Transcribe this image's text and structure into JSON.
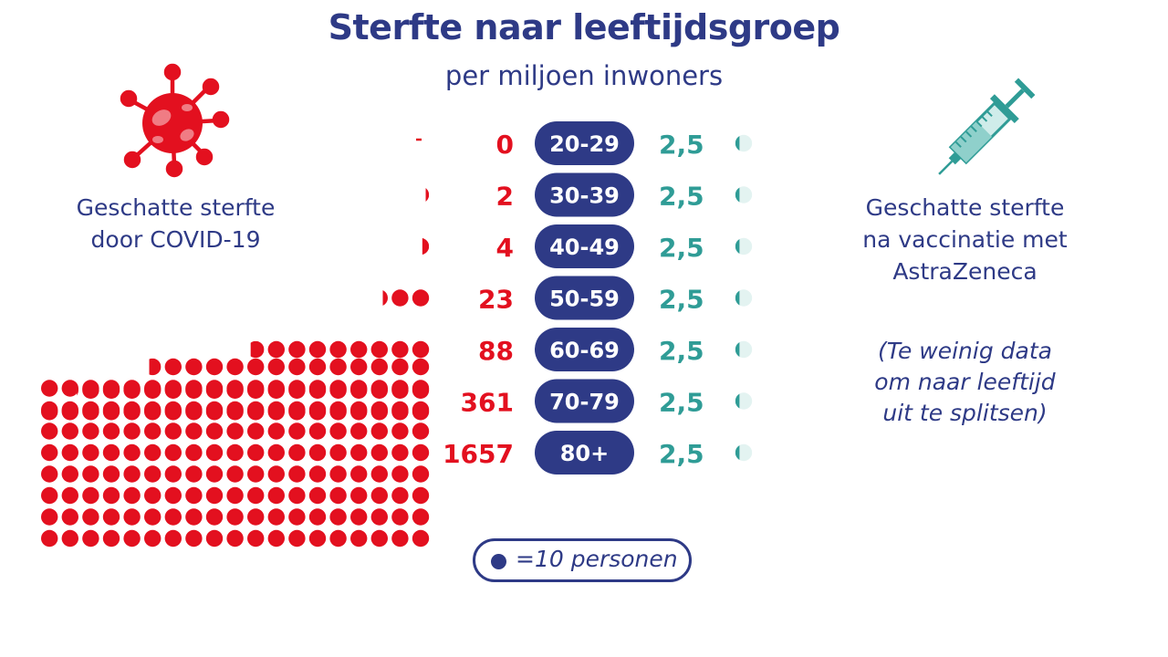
{
  "header": {
    "title": "Sterfte naar leeftijdsgroep",
    "subtitle": "per miljoen inwoners"
  },
  "covid_label": "Geschatte sterfte\ndoor COVID-19",
  "vaccine_label": "Geschatte sterfte\nna vaccinatie met\nAstraZeneca",
  "vaccine_note": "(Te weinig data\nom naar leeftijd\n uit te splitsen)",
  "legend": {
    "text": "=10 personen"
  },
  "icons": {
    "left": "virus-icon",
    "right": "syringe-icon"
  },
  "colors": {
    "title": "#2e3a86",
    "covid": "#e3101f",
    "vaccine": "#2f9c96",
    "badge": "#2e3a86",
    "vaccine_dot": "#e3f3f1"
  },
  "chart_data": {
    "type": "bar",
    "unit": "per miljoen inwoners",
    "dot_value": 10,
    "categories": [
      "20-29",
      "30-39",
      "40-49",
      "50-59",
      "60-69",
      "70-79",
      "80+"
    ],
    "series": [
      {
        "name": "Geschatte sterfte door COVID-19",
        "values": [
          0,
          2,
          4,
          23,
          88,
          361,
          1657
        ],
        "labels": [
          "0",
          "2",
          "4",
          "23",
          "88",
          "361",
          "1657"
        ]
      },
      {
        "name": "Geschatte sterfte na vaccinatie met AstraZeneca",
        "values": [
          2.5,
          2.5,
          2.5,
          2.5,
          2.5,
          2.5,
          2.5
        ],
        "labels": [
          "2,5",
          "2,5",
          "2,5",
          "2,5",
          "2,5",
          "2,5",
          "2,5"
        ]
      }
    ]
  }
}
